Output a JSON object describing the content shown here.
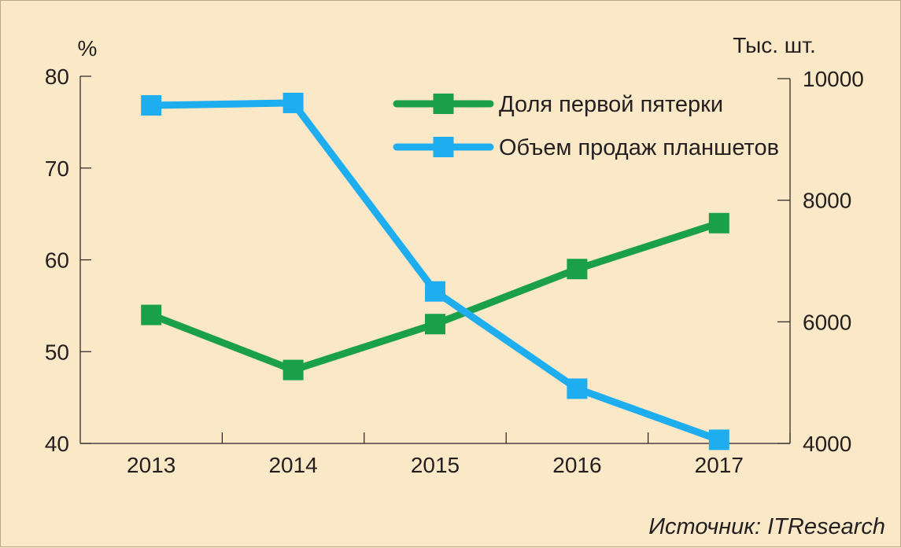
{
  "chart_data": {
    "type": "line",
    "title": "",
    "categories": [
      "2013",
      "2014",
      "2015",
      "2016",
      "2017"
    ],
    "y_left": {
      "unit_label": "%",
      "ylim": [
        40,
        80
      ],
      "ticks": [
        "40",
        "50",
        "60",
        "70",
        "80"
      ]
    },
    "y_right": {
      "unit_label": "Тыс. шт.",
      "ylim": [
        4000,
        10000
      ],
      "ticks": [
        "4000",
        "6000",
        "8000",
        "10000"
      ]
    },
    "series": [
      {
        "name": "Доля первой пятерки",
        "axis": "left",
        "color": "#1ba04a",
        "values": [
          54,
          48,
          53,
          59,
          64
        ]
      },
      {
        "name": "Объем продаж планшетов",
        "axis": "right",
        "color": "#1eaef0",
        "values": [
          9560,
          9600,
          6500,
          4900,
          4060
        ]
      }
    ],
    "legend_position": "top-right",
    "grid": false
  },
  "source": "Источник: ITResearch"
}
